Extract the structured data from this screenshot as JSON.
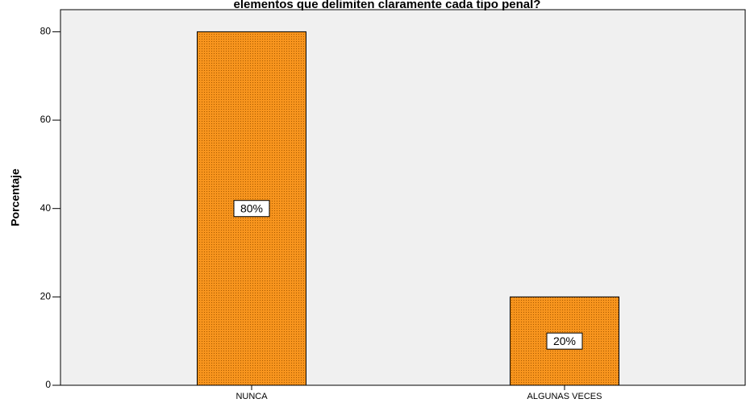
{
  "chart_data": {
    "type": "bar",
    "title": "elementos que delimiten claramente cada tipo penal?",
    "y_label": "Porcentaje",
    "categories": [
      "NUNCA",
      "ALGUNAS VECES"
    ],
    "values": [
      80,
      20
    ],
    "value_labels": [
      "80%",
      "20%"
    ],
    "color": "#f7941d",
    "ylim": [
      0,
      85
    ],
    "yticks": [
      0,
      20,
      40,
      60,
      80
    ],
    "grid": false
  }
}
